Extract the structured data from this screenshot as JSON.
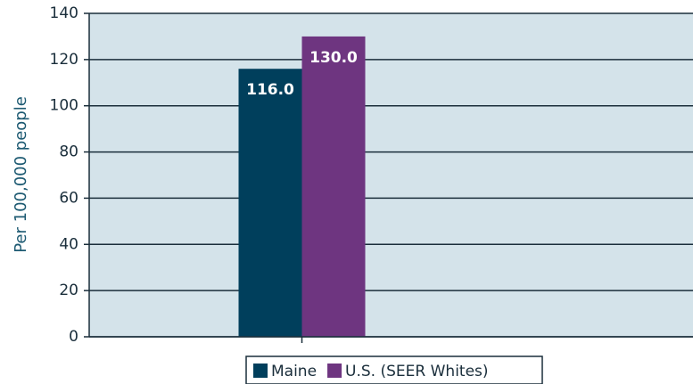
{
  "chart_data": {
    "type": "bar",
    "y_label": "Per 100,000 people",
    "categories": [
      null
    ],
    "series": [
      {
        "name": "Maine",
        "color": "#003f5c",
        "values": [
          116
        ],
        "value_labels": [
          "116.0"
        ]
      },
      {
        "name": "U.S. (SEER Whites)",
        "color": "#6e3580",
        "values": [
          130
        ],
        "value_labels": [
          "130.0"
        ]
      }
    ],
    "ylim": [
      0,
      140
    ],
    "yticks": [
      0,
      20,
      40,
      60,
      80,
      100,
      120,
      140
    ],
    "grid": true,
    "legend": "bottom"
  }
}
